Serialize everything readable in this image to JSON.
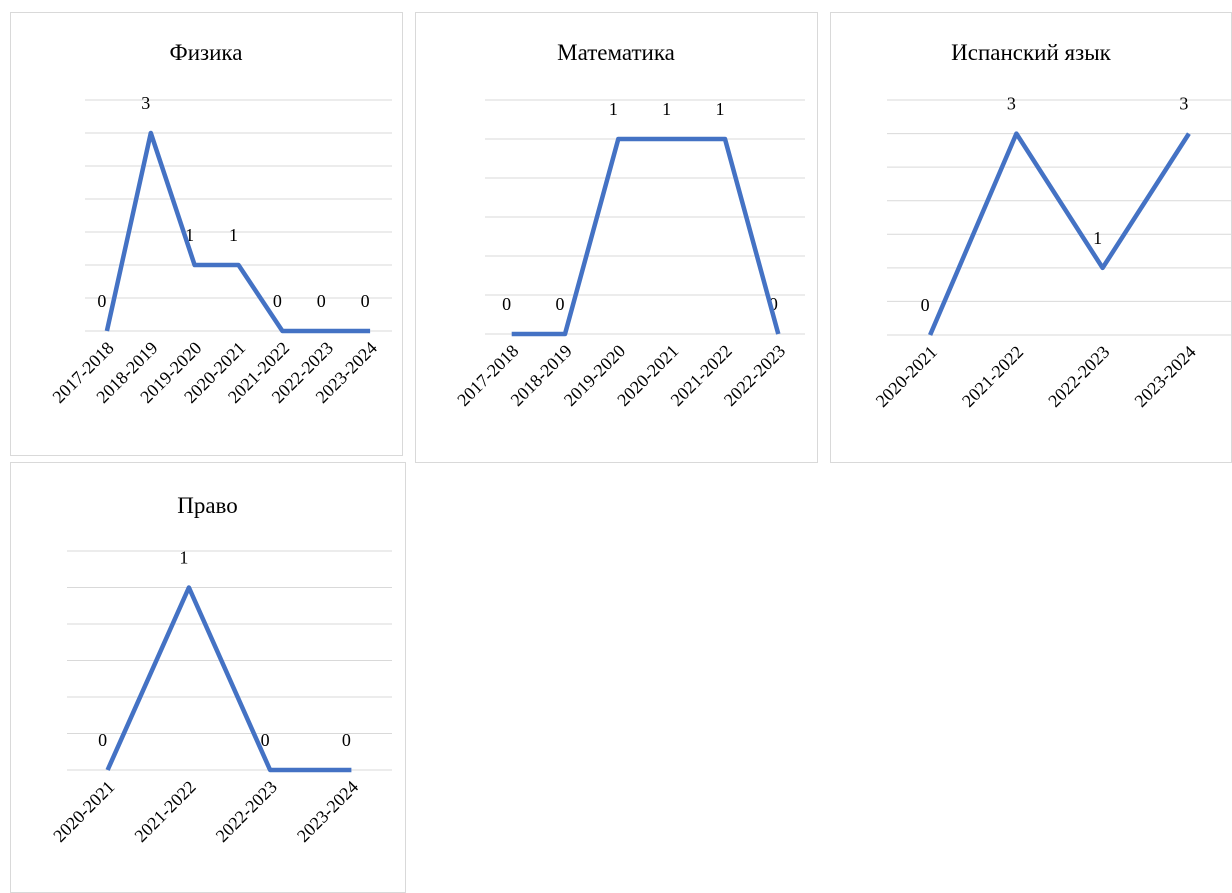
{
  "chart_data": [
    {
      "type": "line",
      "title": "Физика",
      "categories": [
        "2017-2018",
        "2018-2019",
        "2019-2020",
        "2020-2021",
        "2021-2022",
        "2022-2023",
        "2023-2024"
      ],
      "values": [
        0,
        3,
        1,
        1,
        0,
        0,
        0
      ],
      "color": "#4472c4",
      "ylim": [
        0,
        3.5
      ],
      "yticks": [
        0,
        0.5,
        1,
        1.5,
        2,
        2.5,
        3,
        3.5
      ],
      "grid": true
    },
    {
      "type": "line",
      "title": "Математика",
      "categories": [
        "2017-2018",
        "2018-2019",
        "2019-2020",
        "2020-2021",
        "2021-2022",
        "2022-2023"
      ],
      "values": [
        0,
        0,
        1,
        1,
        1,
        0
      ],
      "color": "#4472c4",
      "ylim": [
        0,
        1.2
      ],
      "yticks": [
        0,
        0.2,
        0.4,
        0.6,
        0.8,
        1,
        1.2
      ],
      "grid": true
    },
    {
      "type": "line",
      "title": "Испанский язык",
      "categories": [
        "2020-2021",
        "2021-2022",
        "2022-2023",
        "2023-2024"
      ],
      "values": [
        0,
        3,
        1,
        3
      ],
      "color": "#4472c4",
      "ylim": [
        0,
        3.5
      ],
      "yticks": [
        0,
        0.5,
        1,
        1.5,
        2,
        2.5,
        3,
        3.5
      ],
      "grid": true
    },
    {
      "type": "line",
      "title": "Право",
      "categories": [
        "2020-2021",
        "2021-2022",
        "2022-2023",
        "2023-2024"
      ],
      "values": [
        0,
        1,
        0,
        0
      ],
      "color": "#4472c4",
      "ylim": [
        0,
        1.2
      ],
      "yticks": [
        0,
        0.2,
        0.4,
        0.6,
        0.8,
        1,
        1.2
      ],
      "grid": true
    }
  ]
}
